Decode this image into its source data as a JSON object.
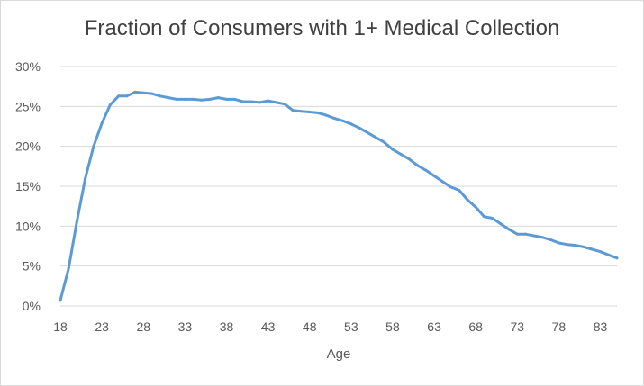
{
  "chart_data": {
    "type": "line",
    "title": "Fraction of Consumers with 1+ Medical Collection",
    "xlabel": "Age",
    "ylabel": "",
    "xlim": [
      18,
      85
    ],
    "ylim": [
      0,
      30
    ],
    "x_ticks": [
      "18",
      "23",
      "28",
      "33",
      "38",
      "43",
      "48",
      "53",
      "58",
      "63",
      "68",
      "73",
      "78",
      "83"
    ],
    "y_ticks": [
      "0%",
      "5%",
      "10%",
      "15%",
      "20%",
      "25%",
      "30%"
    ],
    "grid": true,
    "legend": "none",
    "color": "#5b9bd5",
    "series": [
      {
        "name": "",
        "x": [
          18,
          19,
          20,
          21,
          22,
          23,
          24,
          25,
          26,
          27,
          28,
          29,
          30,
          31,
          32,
          33,
          34,
          35,
          36,
          37,
          38,
          39,
          40,
          41,
          42,
          43,
          44,
          45,
          46,
          47,
          48,
          49,
          50,
          51,
          52,
          53,
          54,
          55,
          56,
          57,
          58,
          59,
          60,
          61,
          62,
          63,
          64,
          65,
          66,
          67,
          68,
          69,
          70,
          71,
          72,
          73,
          74,
          75,
          76,
          77,
          78,
          79,
          80,
          81,
          82,
          83,
          84,
          85
        ],
        "values": [
          0.7,
          4.7,
          10.6,
          16.0,
          20.0,
          22.9,
          25.2,
          26.3,
          26.3,
          26.8,
          26.7,
          26.6,
          26.3,
          26.1,
          25.9,
          25.9,
          25.9,
          25.8,
          25.9,
          26.1,
          25.9,
          25.9,
          25.6,
          25.6,
          25.5,
          25.7,
          25.5,
          25.3,
          24.5,
          24.4,
          24.3,
          24.2,
          23.9,
          23.5,
          23.2,
          22.8,
          22.3,
          21.7,
          21.1,
          20.5,
          19.6,
          19.0,
          18.4,
          17.6,
          17.0,
          16.3,
          15.6,
          14.9,
          14.5,
          13.3,
          12.4,
          11.2,
          11.0,
          10.3,
          9.6,
          9.0,
          9.0,
          8.8,
          8.6,
          8.3,
          7.9,
          7.7,
          7.6,
          7.4,
          7.1,
          6.8,
          6.4,
          6.0
        ]
      }
    ]
  }
}
